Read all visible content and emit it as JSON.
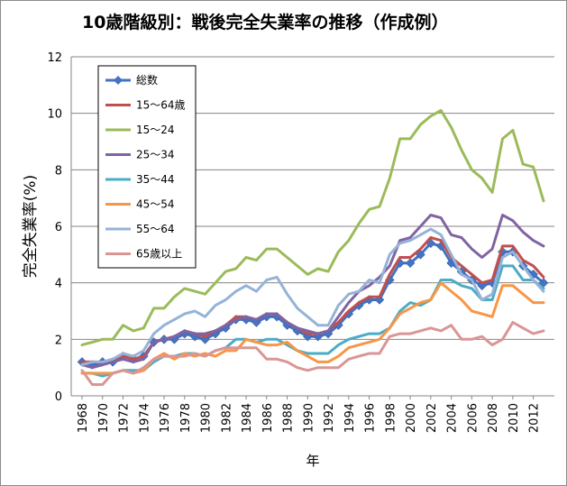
{
  "chart_data": {
    "type": "line",
    "title": "10歳階級別：戦後完全失業率の推移（作成例）",
    "xlabel": "年",
    "ylabel": "完全失業率(%)",
    "ylim": [
      0,
      12
    ],
    "y_ticks": [
      0,
      2,
      4,
      6,
      8,
      10,
      12
    ],
    "x_tick_labels": [
      "1968",
      "1970",
      "1972",
      "1974",
      "1976",
      "1978",
      "1980",
      "1982",
      "1984",
      "1986",
      "1988",
      "1990",
      "1992",
      "1994",
      "1996",
      "1998",
      "2000",
      "2002",
      "2004",
      "2006",
      "2008",
      "2010",
      "2012"
    ],
    "grid": "horizontal",
    "legend_position": "top-left",
    "x": [
      1968,
      1969,
      1970,
      1971,
      1972,
      1973,
      1974,
      1975,
      1976,
      1977,
      1978,
      1979,
      1980,
      1981,
      1982,
      1983,
      1984,
      1985,
      1986,
      1987,
      1988,
      1989,
      1990,
      1991,
      1992,
      1993,
      1994,
      1995,
      1996,
      1997,
      1998,
      1999,
      2000,
      2001,
      2002,
      2003,
      2004,
      2005,
      2006,
      2007,
      2008,
      2009,
      2010,
      2011,
      2012,
      2013
    ],
    "series": [
      {
        "name": "総数",
        "color": "#4472C4",
        "marker": "diamond",
        "values": [
          1.2,
          1.1,
          1.2,
          1.2,
          1.4,
          1.3,
          1.4,
          1.9,
          2.0,
          2.0,
          2.2,
          2.1,
          2.0,
          2.2,
          2.4,
          2.7,
          2.7,
          2.6,
          2.8,
          2.8,
          2.5,
          2.3,
          2.1,
          2.1,
          2.2,
          2.5,
          2.9,
          3.2,
          3.4,
          3.4,
          4.1,
          4.7,
          4.7,
          5.0,
          5.4,
          5.3,
          4.7,
          4.4,
          4.1,
          3.9,
          4.0,
          5.1,
          5.1,
          4.6,
          4.3,
          4.0
        ]
      },
      {
        "name": "15〜64歳",
        "color": "#C0504D",
        "values": [
          1.2,
          1.2,
          1.2,
          1.3,
          1.4,
          1.3,
          1.4,
          1.9,
          2.0,
          2.1,
          2.3,
          2.2,
          2.1,
          2.3,
          2.5,
          2.8,
          2.8,
          2.7,
          2.9,
          2.9,
          2.6,
          2.4,
          2.2,
          2.2,
          2.3,
          2.6,
          3.0,
          3.3,
          3.5,
          3.5,
          4.3,
          4.9,
          4.9,
          5.2,
          5.6,
          5.5,
          4.9,
          4.6,
          4.3,
          4.0,
          4.1,
          5.3,
          5.3,
          4.8,
          4.6,
          4.2
        ]
      },
      {
        "name": "15〜24",
        "color": "#9BBB59",
        "values": [
          1.8,
          1.9,
          2.0,
          2.0,
          2.5,
          2.3,
          2.4,
          3.1,
          3.1,
          3.5,
          3.8,
          3.7,
          3.6,
          4.0,
          4.4,
          4.5,
          4.9,
          4.8,
          5.2,
          5.2,
          4.9,
          4.6,
          4.3,
          4.5,
          4.4,
          5.1,
          5.5,
          6.1,
          6.6,
          6.7,
          7.7,
          9.1,
          9.1,
          9.6,
          9.9,
          10.1,
          9.5,
          8.7,
          8.0,
          7.7,
          7.2,
          9.1,
          9.4,
          8.2,
          8.1,
          6.9
        ]
      },
      {
        "name": "25〜34",
        "color": "#8064A2",
        "values": [
          1.1,
          1.0,
          1.1,
          1.2,
          1.3,
          1.2,
          1.3,
          1.9,
          2.0,
          2.1,
          2.3,
          2.2,
          2.2,
          2.3,
          2.5,
          2.7,
          2.8,
          2.7,
          2.9,
          2.9,
          2.6,
          2.4,
          2.3,
          2.2,
          2.3,
          2.8,
          3.3,
          3.7,
          3.9,
          4.2,
          4.6,
          5.5,
          5.6,
          6.0,
          6.4,
          6.3,
          5.7,
          5.6,
          5.2,
          4.9,
          5.2,
          6.4,
          6.2,
          5.8,
          5.5,
          5.3
        ]
      },
      {
        "name": "35〜44",
        "color": "#4BACC6",
        "values": [
          0.8,
          0.8,
          0.7,
          0.8,
          0.9,
          0.9,
          0.9,
          1.2,
          1.4,
          1.4,
          1.5,
          1.5,
          1.4,
          1.6,
          1.7,
          2.0,
          2.0,
          1.9,
          2.0,
          2.0,
          1.8,
          1.6,
          1.5,
          1.5,
          1.5,
          1.8,
          2.0,
          2.1,
          2.2,
          2.2,
          2.4,
          3.0,
          3.3,
          3.2,
          3.4,
          4.1,
          4.1,
          3.9,
          3.8,
          3.4,
          3.4,
          4.6,
          4.6,
          4.1,
          4.1,
          3.8
        ]
      },
      {
        "name": "45〜54",
        "color": "#F79646",
        "values": [
          0.8,
          0.8,
          0.8,
          0.8,
          0.9,
          0.8,
          0.9,
          1.3,
          1.5,
          1.3,
          1.5,
          1.4,
          1.5,
          1.4,
          1.6,
          1.6,
          2.0,
          1.9,
          1.8,
          1.8,
          1.9,
          1.6,
          1.4,
          1.2,
          1.2,
          1.4,
          1.7,
          1.8,
          1.9,
          2.0,
          2.4,
          2.9,
          3.1,
          3.3,
          3.4,
          4.0,
          3.7,
          3.4,
          3.0,
          2.9,
          2.8,
          3.9,
          3.9,
          3.6,
          3.3,
          3.3
        ]
      },
      {
        "name": "55〜64",
        "color": "#95B3D7",
        "values": [
          1.1,
          1.2,
          1.2,
          1.3,
          1.5,
          1.4,
          1.6,
          2.2,
          2.5,
          2.7,
          2.9,
          3.0,
          2.8,
          3.2,
          3.4,
          3.7,
          3.9,
          3.7,
          4.1,
          4.2,
          3.6,
          3.1,
          2.8,
          2.5,
          2.5,
          3.2,
          3.6,
          3.7,
          4.1,
          4.0,
          5.0,
          5.4,
          5.5,
          5.7,
          5.9,
          5.7,
          5.0,
          4.3,
          4.1,
          3.4,
          3.6,
          4.9,
          5.1,
          4.6,
          4.1,
          3.7
        ]
      },
      {
        "name": "65歳以上",
        "color": "#D99694",
        "values": [
          0.9,
          0.4,
          0.4,
          0.8,
          0.9,
          0.8,
          1.0,
          1.3,
          1.4,
          1.4,
          1.4,
          1.5,
          1.4,
          1.6,
          1.7,
          1.7,
          1.7,
          1.7,
          1.3,
          1.3,
          1.2,
          1.0,
          0.9,
          1.0,
          1.0,
          1.0,
          1.3,
          1.4,
          1.5,
          1.5,
          2.1,
          2.2,
          2.2,
          2.3,
          2.4,
          2.3,
          2.5,
          2.0,
          2.0,
          2.1,
          1.8,
          2.0,
          2.6,
          2.4,
          2.2,
          2.3
        ]
      }
    ]
  }
}
